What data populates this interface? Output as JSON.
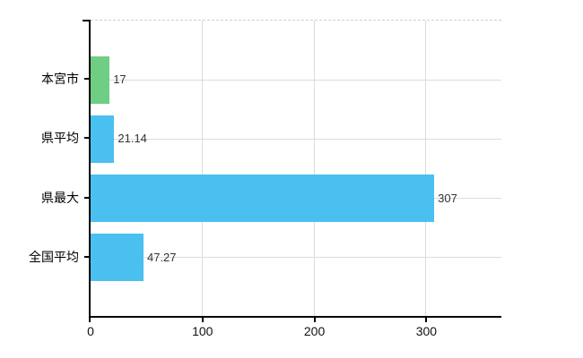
{
  "chart_data": {
    "type": "bar",
    "orientation": "horizontal",
    "title": "",
    "xlabel": "",
    "ylabel": "",
    "categories": [
      "本宮市",
      "県平均",
      "県最大",
      "全国平均"
    ],
    "values": [
      17,
      21.14,
      307,
      47.27
    ],
    "value_labels": [
      "17",
      "21.14",
      "307",
      "47.27"
    ],
    "x_ticks": [
      0,
      100,
      200,
      300
    ],
    "x_tick_labels": [
      "0",
      "100",
      "200",
      "300"
    ],
    "xlim": [
      0,
      367
    ],
    "grid": true,
    "legend": false,
    "bar_colors": [
      "#6fce84",
      "#4ac0f0",
      "#4ac0f0",
      "#4ac0f0"
    ],
    "colors": {
      "highlight_bar": "#6fce84",
      "default_bar": "#4ac0f0",
      "gridline": "#dcdcdc",
      "plot_border_dashed": "#cfcfcf",
      "axis": "#000000",
      "value_label_text": "#333333",
      "axis_label_text": "#111111"
    }
  }
}
